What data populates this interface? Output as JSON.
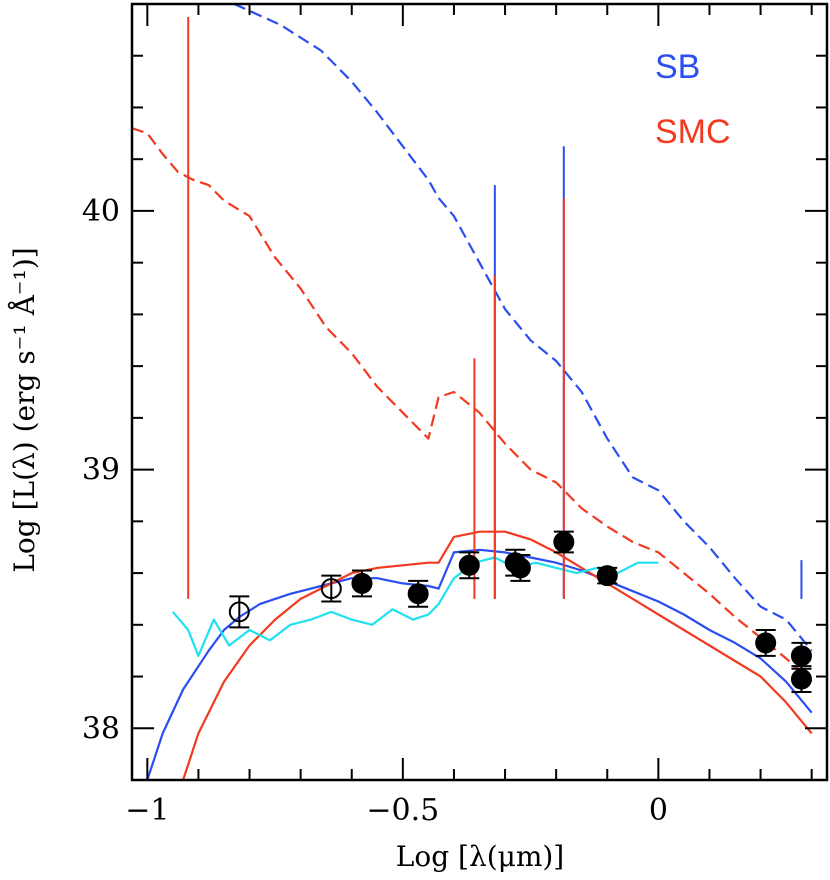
{
  "chart_data": {
    "type": "line",
    "xlabel": "Log [λ(μm)]",
    "ylabel": "Log [L(λ) (erg s⁻¹ Å⁻¹)]",
    "xlim": [
      -1.03,
      0.33
    ],
    "ylim": [
      37.8,
      40.8
    ],
    "x_ticks": [
      -1,
      -0.5,
      0
    ],
    "x_tick_labels": [
      "−1",
      "−0.5",
      "0"
    ],
    "y_ticks": [
      38,
      39,
      40
    ],
    "y_tick_labels": [
      "38",
      "39",
      "40"
    ],
    "legend": [
      {
        "label": "SB",
        "color": "#2a4ef0"
      },
      {
        "label": "SMC",
        "color": "#f23a20"
      }
    ],
    "series": [
      {
        "name": "SB intrinsic (dashed)",
        "color": "#2a4ef0",
        "style": "dashed",
        "x": [
          -0.83,
          -0.74,
          -0.66,
          -0.6,
          -0.55,
          -0.5,
          -0.45,
          -0.43,
          -0.4,
          -0.35,
          -0.3,
          -0.25,
          -0.2,
          -0.15,
          -0.1,
          -0.05,
          0.0,
          0.05,
          0.1,
          0.15,
          0.2,
          0.25,
          0.3
        ],
        "y": [
          40.8,
          40.72,
          40.62,
          40.5,
          40.38,
          40.25,
          40.12,
          40.05,
          39.98,
          39.8,
          39.62,
          39.5,
          39.42,
          39.3,
          39.12,
          38.97,
          38.92,
          38.8,
          38.7,
          38.58,
          38.47,
          38.42,
          38.3
        ]
      },
      {
        "name": "SMC intrinsic (dashed)",
        "color": "#f23a20",
        "style": "dashed",
        "x": [
          -1.03,
          -1.0,
          -0.97,
          -0.94,
          -0.91,
          -0.88,
          -0.85,
          -0.8,
          -0.75,
          -0.7,
          -0.65,
          -0.6,
          -0.55,
          -0.5,
          -0.45,
          -0.43,
          -0.4,
          -0.35,
          -0.3,
          -0.25,
          -0.2,
          -0.15,
          -0.1,
          -0.05,
          0.0,
          0.05,
          0.1,
          0.15,
          0.2,
          0.25,
          0.3
        ],
        "y": [
          40.32,
          40.3,
          40.22,
          40.15,
          40.12,
          40.1,
          40.04,
          39.98,
          39.82,
          39.7,
          39.55,
          39.45,
          39.32,
          39.22,
          39.12,
          39.28,
          39.3,
          39.22,
          39.1,
          39.0,
          38.95,
          38.85,
          38.78,
          38.72,
          38.68,
          38.6,
          38.52,
          38.43,
          38.35,
          38.27,
          38.18
        ]
      },
      {
        "name": "SB attenuated",
        "color": "#2a4ef0",
        "style": "solid",
        "x": [
          -1.0,
          -0.97,
          -0.93,
          -0.88,
          -0.85,
          -0.82,
          -0.78,
          -0.72,
          -0.66,
          -0.6,
          -0.55,
          -0.5,
          -0.45,
          -0.43,
          -0.4,
          -0.35,
          -0.3,
          -0.25,
          -0.2,
          -0.15,
          -0.1,
          -0.05,
          0.0,
          0.05,
          0.1,
          0.15,
          0.2,
          0.25,
          0.3
        ],
        "y": [
          37.8,
          37.98,
          38.15,
          38.3,
          38.38,
          38.43,
          38.48,
          38.52,
          38.55,
          38.58,
          38.58,
          38.56,
          38.55,
          38.54,
          38.68,
          38.69,
          38.68,
          38.66,
          38.64,
          38.61,
          38.57,
          38.53,
          38.49,
          38.44,
          38.38,
          38.33,
          38.27,
          38.18,
          38.06
        ]
      },
      {
        "name": "SMC attenuated",
        "color": "#f23a20",
        "style": "solid",
        "x": [
          -0.93,
          -0.9,
          -0.85,
          -0.8,
          -0.75,
          -0.7,
          -0.65,
          -0.6,
          -0.55,
          -0.5,
          -0.45,
          -0.43,
          -0.4,
          -0.35,
          -0.3,
          -0.25,
          -0.2,
          -0.15,
          -0.1,
          -0.05,
          0.0,
          0.05,
          0.1,
          0.15,
          0.2,
          0.25,
          0.3
        ],
        "y": [
          37.8,
          37.98,
          38.18,
          38.32,
          38.42,
          38.5,
          38.55,
          38.6,
          38.62,
          38.63,
          38.64,
          38.64,
          38.74,
          38.76,
          38.76,
          38.73,
          38.68,
          38.62,
          38.56,
          38.5,
          38.44,
          38.38,
          38.32,
          38.26,
          38.2,
          38.1,
          37.98
        ]
      },
      {
        "name": "Observed spectrum",
        "color": "#1ee0f0",
        "style": "solid",
        "x": [
          -0.95,
          -0.92,
          -0.9,
          -0.87,
          -0.84,
          -0.8,
          -0.76,
          -0.72,
          -0.68,
          -0.64,
          -0.6,
          -0.56,
          -0.52,
          -0.48,
          -0.45,
          -0.43,
          -0.4,
          -0.36,
          -0.32,
          -0.28,
          -0.24,
          -0.2,
          -0.16,
          -0.12,
          -0.08,
          -0.04,
          0.0
        ],
        "y": [
          38.45,
          38.38,
          38.28,
          38.42,
          38.32,
          38.38,
          38.34,
          38.4,
          38.42,
          38.45,
          38.42,
          38.4,
          38.46,
          38.42,
          38.44,
          38.48,
          38.58,
          38.64,
          38.66,
          38.62,
          38.64,
          38.62,
          38.6,
          38.62,
          38.6,
          38.64,
          38.64
        ]
      }
    ],
    "emission_lines": [
      {
        "x": -0.32,
        "y_top": 40.1,
        "color": "#2a4ef0"
      },
      {
        "x": -0.32,
        "y_top": 39.75,
        "color": "#f23a20"
      },
      {
        "x": -0.185,
        "y_top": 40.25,
        "color": "#2a4ef0"
      },
      {
        "x": -0.185,
        "y_top": 40.05,
        "color": "#f23a20"
      },
      {
        "x": -0.92,
        "y_top": 40.75,
        "color": "#f23a20"
      },
      {
        "x": -0.36,
        "y_top": 39.43,
        "color": "#f23a20"
      },
      {
        "x": 0.28,
        "y_top": 38.65,
        "color": "#2a4ef0"
      }
    ],
    "photometry": [
      {
        "x": -0.82,
        "y": 38.45,
        "err": 0.06,
        "filled": false
      },
      {
        "x": -0.64,
        "y": 38.54,
        "err": 0.05,
        "filled": false
      },
      {
        "x": -0.58,
        "y": 38.56,
        "err": 0.05,
        "filled": true
      },
      {
        "x": -0.47,
        "y": 38.52,
        "err": 0.05,
        "filled": true
      },
      {
        "x": -0.37,
        "y": 38.63,
        "err": 0.05,
        "filled": true
      },
      {
        "x": -0.28,
        "y": 38.64,
        "err": 0.05,
        "filled": true
      },
      {
        "x": -0.27,
        "y": 38.62,
        "err": 0.05,
        "filled": true
      },
      {
        "x": -0.185,
        "y": 38.72,
        "err": 0.04,
        "filled": true
      },
      {
        "x": -0.1,
        "y": 38.59,
        "err": 0.03,
        "filled": true
      },
      {
        "x": 0.21,
        "y": 38.33,
        "err": 0.05,
        "filled": true
      },
      {
        "x": 0.28,
        "y": 38.28,
        "err": 0.05,
        "filled": true
      },
      {
        "x": 0.28,
        "y": 38.19,
        "err": 0.05,
        "filled": true
      }
    ]
  }
}
